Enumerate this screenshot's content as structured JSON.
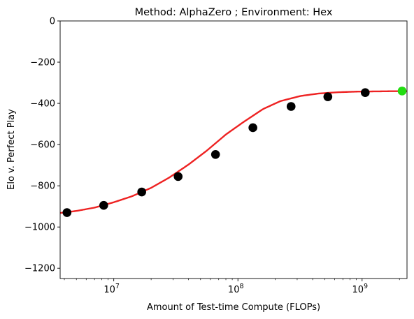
{
  "chart_data": {
    "type": "scatter",
    "title": "Method: AlphaZero ; Environment: Hex",
    "xlabel": "Amount of Test-time Compute (FLOPs)",
    "ylabel": "Elo v. Perfect Play",
    "x_scale": "log",
    "xlim": [
      3700000,
      2300000000
    ],
    "ylim": [
      -1250,
      0
    ],
    "x_ticks": [
      {
        "value": 10000000,
        "base": "10",
        "exp": "7"
      },
      {
        "value": 100000000,
        "base": "10",
        "exp": "8"
      },
      {
        "value": 1000000000,
        "base": "10",
        "exp": "9"
      }
    ],
    "y_ticks": [
      0,
      -200,
      -400,
      -600,
      -800,
      -1000,
      -1200
    ],
    "y_tick_labels": [
      "0",
      "−200",
      "−400",
      "−600",
      "−800",
      "−1000",
      "−1200"
    ],
    "series": [
      {
        "kind": "points",
        "color": "#000000",
        "x": [
          4200000,
          8300000,
          16800000,
          33000000,
          66000000,
          132000000,
          268000000,
          530000000,
          1060000000
        ],
        "y": [
          -930,
          -895,
          -830,
          -755,
          -648,
          -518,
          -415,
          -368,
          -348
        ]
      },
      {
        "kind": "points",
        "color": "#22dd11",
        "x": [
          2100000000
        ],
        "y": [
          -340
        ]
      },
      {
        "kind": "fit-line",
        "color": "#ee2222",
        "x": [
          3700000,
          5000000,
          7000000,
          10000000,
          14000000,
          20000000,
          28000000,
          40000000,
          56000000,
          80000000,
          110000000,
          160000000,
          220000000,
          320000000,
          450000000,
          640000000,
          900000000,
          1280000000,
          1800000000,
          2300000000
        ],
        "y": [
          -932,
          -922,
          -906,
          -880,
          -851,
          -810,
          -760,
          -697,
          -630,
          -551,
          -492,
          -427,
          -389,
          -364,
          -352,
          -346,
          -343,
          -342,
          -341,
          -341
        ]
      }
    ]
  }
}
